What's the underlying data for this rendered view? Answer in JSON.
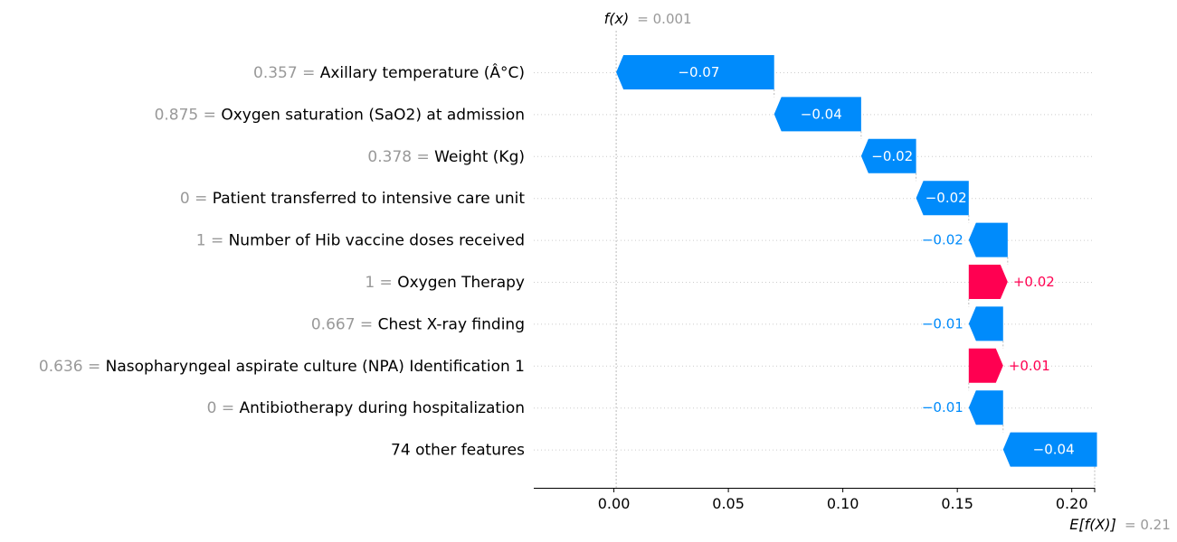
{
  "chart_data": {
    "type": "waterfall",
    "fx": {
      "label": "f(x)",
      "value_text": "= 0.001",
      "value": 0.001
    },
    "efx": {
      "label": "E[f(X)]",
      "value_text": "= 0.21",
      "value": 0.21
    },
    "xlim": [
      -0.035,
      0.21
    ],
    "x_ticks": [
      {
        "value": 0.0,
        "label": "0.00"
      },
      {
        "value": 0.05,
        "label": "0.05"
      },
      {
        "value": 0.1,
        "label": "0.10"
      },
      {
        "value": 0.15,
        "label": "0.15"
      },
      {
        "value": 0.2,
        "label": "0.20"
      }
    ],
    "colors": {
      "negative": "#008bfb",
      "positive": "#ff0051",
      "feature_value": "#999999",
      "grid": "#cccccc"
    },
    "features": [
      {
        "value_text": "0.357 =",
        "name": "Axillary temperature (Â°C)",
        "contribution": -0.069,
        "label": "−0.07"
      },
      {
        "value_text": "0.875 =",
        "name": "Oxygen saturation (SaO2) at admission",
        "contribution": -0.038,
        "label": "−0.04"
      },
      {
        "value_text": "0.378 =",
        "name": "Weight (Kg)",
        "contribution": -0.024,
        "label": "−0.02"
      },
      {
        "value_text": "0 =",
        "name": "Patient transferred to intensive care unit",
        "contribution": -0.023,
        "label": "−0.02"
      },
      {
        "value_text": "1 =",
        "name": "Number of Hib vaccine doses received",
        "contribution": -0.017,
        "label": "−0.02"
      },
      {
        "value_text": "1 =",
        "name": "Oxygen Therapy",
        "contribution": 0.017,
        "label": "+0.02"
      },
      {
        "value_text": "0.667 =",
        "name": "Chest X-ray finding",
        "contribution": -0.015,
        "label": "−0.01"
      },
      {
        "value_text": "0.636 =",
        "name": "Nasopharyngeal aspirate culture (NPA) Identification 1",
        "contribution": 0.015,
        "label": "+0.01"
      },
      {
        "value_text": "0 =",
        "name": "Antibiotherapy during hospitalization",
        "contribution": -0.015,
        "label": "−0.01"
      },
      {
        "value_text": "",
        "name": "74 other features",
        "contribution": -0.041,
        "label": "−0.04"
      }
    ]
  }
}
